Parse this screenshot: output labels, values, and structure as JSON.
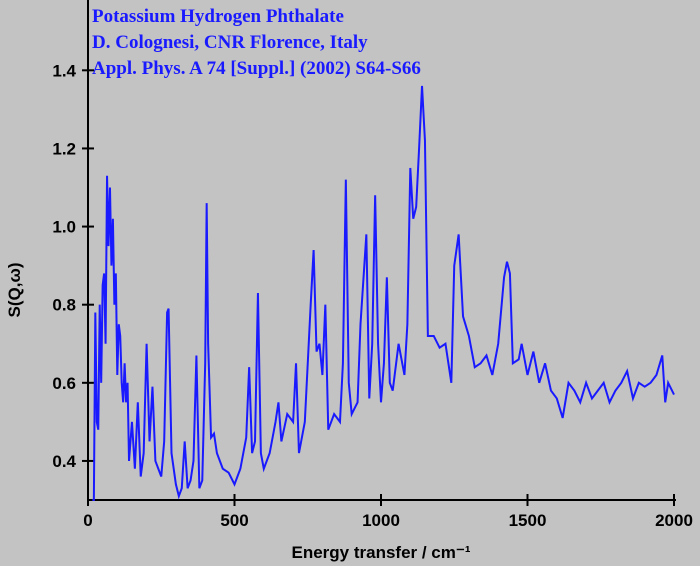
{
  "chart_data": {
    "type": "line",
    "title_lines": [
      "Potassium Hydrogen Phthalate",
      "D. Colognesi, CNR Florence, Italy",
      "Appl. Phys. A 74 [Suppl.] (2002) S64-S66"
    ],
    "xlabel": "Energy transfer / cm⁻¹",
    "ylabel": "S(Q,ω)",
    "xlim": [
      0,
      2000
    ],
    "ylim": [
      0.3,
      1.58
    ],
    "xticks": [
      0,
      500,
      1000,
      1500,
      2000
    ],
    "yticks": [
      0.4,
      0.6,
      0.8,
      {
        "value": 1,
        "label": "1.0"
      },
      1.2,
      1.4
    ],
    "series": [
      {
        "color": "#1a1aff",
        "x": [
          15,
          20,
          25,
          30,
          35,
          40,
          45,
          50,
          55,
          60,
          65,
          70,
          75,
          80,
          85,
          90,
          95,
          100,
          105,
          110,
          115,
          120,
          125,
          130,
          135,
          140,
          150,
          160,
          170,
          180,
          190,
          200,
          210,
          220,
          230,
          240,
          250,
          260,
          270,
          275,
          285,
          300,
          310,
          320,
          330,
          340,
          350,
          360,
          370,
          380,
          390,
          400,
          405,
          410,
          420,
          430,
          440,
          460,
          480,
          500,
          520,
          540,
          550,
          560,
          570,
          580,
          590,
          600,
          620,
          640,
          650,
          660,
          680,
          700,
          710,
          720,
          740,
          760,
          770,
          780,
          790,
          800,
          810,
          820,
          840,
          860,
          870,
          880,
          890,
          900,
          920,
          930,
          950,
          960,
          970,
          980,
          990,
          1000,
          1010,
          1020,
          1030,
          1040,
          1060,
          1080,
          1090,
          1100,
          1110,
          1120,
          1130,
          1140,
          1150,
          1160,
          1180,
          1200,
          1220,
          1240,
          1250,
          1265,
          1280,
          1300,
          1320,
          1340,
          1360,
          1380,
          1400,
          1420,
          1430,
          1440,
          1450,
          1470,
          1480,
          1500,
          1520,
          1540,
          1560,
          1580,
          1600,
          1620,
          1640,
          1660,
          1680,
          1700,
          1720,
          1740,
          1760,
          1780,
          1800,
          1820,
          1840,
          1860,
          1880,
          1900,
          1920,
          1940,
          1960,
          1970,
          1980,
          2000
        ],
        "values": [
          0.3,
          0.3,
          0.78,
          0.5,
          0.48,
          0.8,
          0.6,
          0.85,
          0.88,
          0.7,
          1.13,
          0.95,
          1.1,
          0.9,
          1.02,
          0.8,
          0.88,
          0.62,
          0.75,
          0.72,
          0.6,
          0.55,
          0.65,
          0.55,
          0.6,
          0.4,
          0.5,
          0.38,
          0.55,
          0.36,
          0.42,
          0.7,
          0.45,
          0.59,
          0.4,
          0.38,
          0.36,
          0.45,
          0.78,
          0.79,
          0.42,
          0.34,
          0.31,
          0.33,
          0.45,
          0.33,
          0.35,
          0.4,
          0.67,
          0.33,
          0.35,
          0.65,
          1.06,
          0.7,
          0.46,
          0.47,
          0.42,
          0.38,
          0.37,
          0.34,
          0.38,
          0.46,
          0.64,
          0.42,
          0.45,
          0.83,
          0.42,
          0.38,
          0.42,
          0.5,
          0.55,
          0.45,
          0.52,
          0.5,
          0.65,
          0.42,
          0.5,
          0.8,
          0.94,
          0.68,
          0.7,
          0.62,
          0.8,
          0.48,
          0.52,
          0.5,
          0.65,
          1.12,
          0.6,
          0.52,
          0.55,
          0.75,
          0.98,
          0.56,
          0.7,
          1.08,
          0.7,
          0.55,
          0.65,
          0.87,
          0.6,
          0.58,
          0.7,
          0.62,
          0.75,
          1.15,
          1.02,
          1.05,
          1.2,
          1.36,
          1.22,
          0.72,
          0.72,
          0.69,
          0.7,
          0.6,
          0.9,
          0.98,
          0.77,
          0.72,
          0.64,
          0.65,
          0.67,
          0.62,
          0.7,
          0.87,
          0.91,
          0.88,
          0.65,
          0.66,
          0.7,
          0.62,
          0.68,
          0.6,
          0.65,
          0.58,
          0.56,
          0.51,
          0.6,
          0.58,
          0.55,
          0.6,
          0.56,
          0.58,
          0.6,
          0.55,
          0.58,
          0.6,
          0.63,
          0.56,
          0.6,
          0.59,
          0.6,
          0.62,
          0.67,
          0.55,
          0.6,
          0.57
        ]
      }
    ]
  }
}
